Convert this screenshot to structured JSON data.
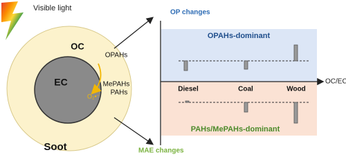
{
  "light": "Visible light",
  "particle": {
    "outer": "OC",
    "inner": "EC",
    "radical": "O₂•⁻",
    "species_top": "OPAHs",
    "species_bottom_1": "MePAHs",
    "species_bottom_2": "PAHs",
    "name": "Soot"
  },
  "panel": {
    "y_top_label": "OP changes",
    "y_bottom_label": "MAE changes",
    "x_label": "OC/EC",
    "top_region": "OPAHs-dominant",
    "bottom_region": "PAHs/MePAHs-dominant",
    "sources": [
      "Diesel",
      "Coal",
      "Wood"
    ]
  }
}
